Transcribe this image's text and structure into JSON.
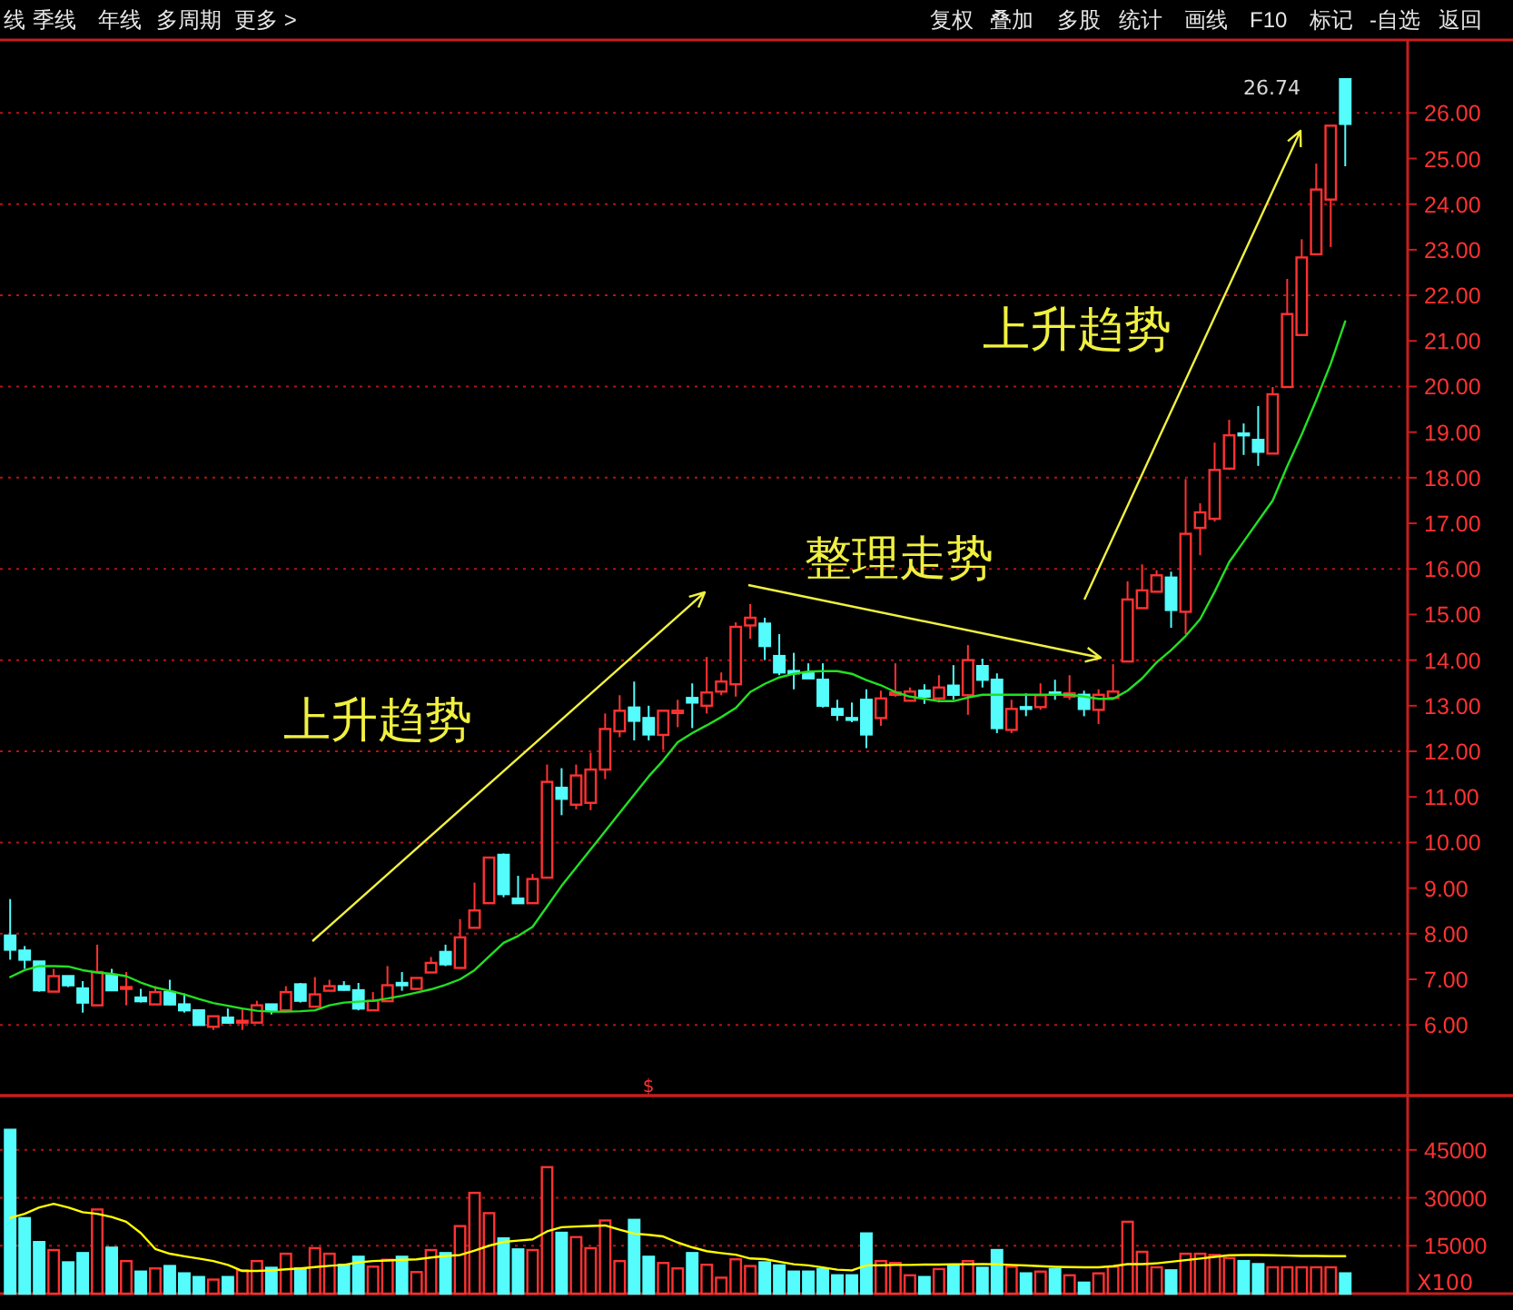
{
  "chart_data": [
    {
      "type": "other",
      "annotations": [
        "线",
        "季线",
        "年线",
        "多周期",
        "更多 >",
        "复权",
        "叠加",
        "多股",
        "统计",
        "画线",
        "F10",
        "标记",
        "-自选",
        "返回"
      ]
    },
    {
      "type": "candlestick",
      "categories": [
        null,
        null,
        null,
        null,
        null,
        null,
        null,
        null,
        null,
        null,
        null,
        null,
        null,
        null,
        null,
        null,
        null,
        null,
        null,
        null,
        null,
        null,
        null,
        null,
        null,
        null,
        null,
        null,
        null,
        null,
        null,
        null,
        null,
        null,
        null,
        null,
        null,
        null,
        null,
        null,
        null,
        null,
        null,
        null,
        null,
        null,
        null,
        null,
        null,
        null,
        null,
        null,
        null,
        null,
        null,
        null,
        null,
        null,
        null,
        null,
        null,
        null,
        null,
        null,
        null,
        null,
        null,
        null,
        null,
        null,
        null,
        null,
        null,
        null,
        null,
        null,
        null,
        null,
        null,
        null,
        null,
        null,
        null,
        null,
        null,
        null,
        null,
        null,
        null,
        null,
        null,
        null,
        null
      ],
      "ylim": [
        4.45,
        27.6
      ],
      "yticks": [
        {
          "value": 6,
          "label": "6.00"
        },
        {
          "value": 7,
          "label": "7.00"
        },
        {
          "value": 8,
          "label": "8.00"
        },
        {
          "value": 9,
          "label": "9.00"
        },
        {
          "value": 10,
          "label": "10.00"
        },
        {
          "value": 11,
          "label": "11.00"
        },
        {
          "value": 12,
          "label": "12.00"
        },
        {
          "value": 13,
          "label": "13.00"
        },
        {
          "value": 14,
          "label": "14.00"
        },
        {
          "value": 15,
          "label": "15.00"
        },
        {
          "value": 16,
          "label": "16.00"
        },
        {
          "value": 17,
          "label": "17.00"
        },
        {
          "value": 18,
          "label": "18.00"
        },
        {
          "value": 19,
          "label": "19.00"
        },
        {
          "value": 20,
          "label": "20.00"
        },
        {
          "value": 21,
          "label": "21.00"
        },
        {
          "value": 22,
          "label": "22.00"
        },
        {
          "value": 23,
          "label": "23.00"
        },
        {
          "value": 24,
          "label": "24.00"
        },
        {
          "value": 25,
          "label": "25.00"
        },
        {
          "value": 26,
          "label": "26.00"
        }
      ],
      "grid": "y",
      "tick_labels": "y",
      "annotations": [
        "上升趋势",
        "整理走势",
        "上升趋势",
        "26.74",
        "$"
      ],
      "series": [
        {
          "type": "candlestick",
          "ohlc": [
            [
              7.96,
              8.76,
              7.43,
              7.65
            ],
            [
              7.63,
              7.73,
              7.23,
              7.43
            ],
            [
              7.39,
              7.39,
              6.73,
              6.76
            ],
            [
              6.73,
              7.23,
              6.73,
              7.07
            ],
            [
              7.07,
              7.07,
              6.83,
              6.87
            ],
            [
              6.8,
              6.96,
              6.27,
              6.49
            ],
            [
              6.43,
              7.76,
              6.43,
              7.16
            ],
            [
              7.09,
              7.23,
              6.76,
              6.76
            ],
            [
              6.8,
              7.16,
              6.43,
              6.83
            ],
            [
              6.6,
              6.79,
              6.49,
              6.52
            ],
            [
              6.45,
              6.85,
              6.45,
              6.72
            ],
            [
              6.72,
              6.99,
              6.43,
              6.45
            ],
            [
              6.45,
              6.69,
              6.27,
              6.32
            ],
            [
              6.32,
              6.32,
              6.0,
              6.0
            ],
            [
              5.96,
              6.19,
              5.89,
              6.19
            ],
            [
              6.16,
              6.36,
              6.03,
              6.05
            ],
            [
              6.05,
              6.36,
              5.89,
              6.09
            ],
            [
              6.05,
              6.53,
              6.05,
              6.43
            ],
            [
              6.45,
              6.45,
              6.23,
              6.32
            ],
            [
              6.32,
              6.85,
              6.32,
              6.72
            ],
            [
              6.89,
              6.92,
              6.49,
              6.53
            ],
            [
              6.4,
              7.05,
              6.4,
              6.67
            ],
            [
              6.75,
              6.99,
              6.75,
              6.85
            ],
            [
              6.85,
              6.96,
              6.75,
              6.77
            ],
            [
              6.76,
              6.92,
              6.32,
              6.36
            ],
            [
              6.32,
              6.72,
              6.32,
              6.53
            ],
            [
              6.52,
              7.29,
              6.52,
              6.87
            ],
            [
              6.92,
              7.16,
              6.75,
              6.87
            ],
            [
              6.79,
              7.03,
              6.79,
              7.03
            ],
            [
              7.15,
              7.49,
              7.15,
              7.36
            ],
            [
              7.6,
              7.76,
              7.29,
              7.33
            ],
            [
              7.25,
              8.32,
              7.25,
              7.92
            ],
            [
              8.13,
              9.12,
              8.13,
              8.51
            ],
            [
              8.67,
              9.67,
              8.67,
              9.67
            ],
            [
              9.73,
              9.76,
              8.8,
              8.87
            ],
            [
              8.77,
              9.27,
              8.67,
              8.67
            ],
            [
              8.67,
              9.31,
              8.67,
              9.2
            ],
            [
              9.23,
              11.71,
              9.23,
              11.33
            ],
            [
              11.2,
              11.63,
              10.6,
              10.96
            ],
            [
              10.83,
              11.71,
              10.73,
              11.47
            ],
            [
              10.87,
              11.97,
              10.71,
              11.6
            ],
            [
              11.6,
              12.83,
              11.39,
              12.49
            ],
            [
              12.44,
              13.23,
              12.31,
              12.89
            ],
            [
              12.96,
              13.53,
              12.24,
              12.67
            ],
            [
              12.73,
              13.0,
              12.24,
              12.37
            ],
            [
              12.36,
              12.89,
              12.03,
              12.89
            ],
            [
              12.84,
              13.13,
              12.53,
              12.89
            ],
            [
              13.17,
              13.49,
              12.51,
              13.07
            ],
            [
              13.0,
              14.07,
              12.83,
              13.29
            ],
            [
              13.31,
              13.73,
              13.23,
              13.53
            ],
            [
              13.47,
              14.83,
              13.2,
              14.73
            ],
            [
              14.76,
              15.23,
              14.47,
              14.93
            ],
            [
              14.8,
              14.93,
              14.0,
              14.31
            ],
            [
              14.09,
              14.57,
              13.67,
              13.73
            ],
            [
              13.76,
              14.16,
              13.36,
              13.71
            ],
            [
              13.71,
              13.93,
              13.6,
              13.6
            ],
            [
              13.57,
              13.93,
              12.96,
              13.0
            ],
            [
              12.93,
              13.13,
              12.67,
              12.8
            ],
            [
              12.73,
              13.07,
              12.64,
              12.69
            ],
            [
              13.13,
              13.36,
              12.07,
              12.37
            ],
            [
              12.73,
              13.33,
              12.56,
              13.16
            ],
            [
              13.24,
              13.93,
              13.2,
              13.29
            ],
            [
              13.11,
              13.4,
              13.11,
              13.31
            ],
            [
              13.33,
              13.47,
              13.04,
              13.2
            ],
            [
              13.16,
              13.67,
              13.07,
              13.4
            ],
            [
              13.44,
              13.89,
              13.13,
              13.24
            ],
            [
              13.23,
              14.33,
              12.8,
              14.0
            ],
            [
              13.87,
              14.03,
              13.4,
              13.57
            ],
            [
              13.57,
              13.71,
              12.4,
              12.51
            ],
            [
              12.47,
              13.13,
              12.4,
              12.93
            ],
            [
              12.97,
              13.27,
              12.77,
              12.93
            ],
            [
              12.97,
              13.49,
              12.91,
              13.23
            ],
            [
              13.29,
              13.57,
              13.13,
              13.24
            ],
            [
              13.2,
              13.67,
              13.13,
              13.27
            ],
            [
              13.24,
              13.33,
              12.77,
              12.93
            ],
            [
              12.91,
              13.36,
              12.6,
              13.24
            ],
            [
              13.17,
              13.91,
              13.17,
              13.31
            ],
            [
              13.97,
              15.73,
              13.97,
              15.33
            ],
            [
              15.14,
              16.1,
              15.14,
              15.53
            ],
            [
              15.5,
              15.97,
              15.5,
              15.86
            ],
            [
              15.81,
              15.94,
              14.71,
              15.1
            ],
            [
              15.06,
              17.97,
              14.57,
              16.77
            ],
            [
              16.9,
              17.44,
              16.3,
              17.24
            ],
            [
              17.1,
              18.77,
              17.04,
              18.17
            ],
            [
              18.2,
              19.27,
              18.17,
              18.93
            ],
            [
              18.97,
              19.19,
              18.5,
              18.93
            ],
            [
              18.83,
              19.57,
              18.26,
              18.57
            ],
            [
              18.53,
              19.99,
              18.53,
              19.83
            ],
            [
              19.99,
              22.36,
              19.99,
              21.59
            ],
            [
              21.13,
              23.23,
              21.13,
              22.83
            ],
            [
              22.9,
              24.89,
              22.9,
              24.32
            ],
            [
              24.1,
              25.72,
              23.06,
              25.72
            ],
            [
              26.74,
              26.74,
              24.83,
              25.76
            ]
          ],
          "colors": [
            "#54fcfc",
            "#54fcfc",
            "#54fcfc",
            "#ff3232",
            "#54fcfc",
            "#54fcfc",
            "#ff3232",
            "#54fcfc",
            "#ff3232",
            "#54fcfc",
            "#ff3232",
            "#54fcfc",
            "#54fcfc",
            "#54fcfc",
            "#ff3232",
            "#54fcfc",
            "#ff3232",
            "#ff3232",
            "#54fcfc",
            "#ff3232",
            "#54fcfc",
            "#ff3232",
            "#ff3232",
            "#54fcfc",
            "#54fcfc",
            "#ff3232",
            "#ff3232",
            "#54fcfc",
            "#ff3232",
            "#ff3232",
            "#54fcfc",
            "#ff3232",
            "#ff3232",
            "#ff3232",
            "#54fcfc",
            "#54fcfc",
            "#ff3232",
            "#ff3232",
            "#54fcfc",
            "#ff3232",
            "#ff3232",
            "#ff3232",
            "#ff3232",
            "#54fcfc",
            "#54fcfc",
            "#ff3232",
            "#ff3232",
            "#54fcfc",
            "#ff3232",
            "#ff3232",
            "#ff3232",
            "#ff3232",
            "#54fcfc",
            "#54fcfc",
            "#54fcfc",
            "#54fcfc",
            "#54fcfc",
            "#54fcfc",
            "#54fcfc",
            "#54fcfc",
            "#ff3232",
            "#ff3232",
            "#ff3232",
            "#54fcfc",
            "#ff3232",
            "#54fcfc",
            "#ff3232",
            "#54fcfc",
            "#54fcfc",
            "#ff3232",
            "#54fcfc",
            "#ff3232",
            "#54fcfc",
            "#ff3232",
            "#54fcfc",
            "#ff3232",
            "#ff3232",
            "#ff3232",
            "#ff3232",
            "#ff3232",
            "#54fcfc",
            "#ff3232",
            "#ff3232",
            "#ff3232",
            "#ff3232",
            "#54fcfc",
            "#54fcfc",
            "#ff3232",
            "#ff3232",
            "#ff3232",
            "#ff3232",
            "#ff3232",
            "#54fcfc"
          ]
        },
        {
          "type": "line",
          "color": "#22e022",
          "values": [
            7.05,
            7.2,
            7.29,
            7.29,
            7.28,
            7.2,
            7.15,
            7.12,
            7.07,
            6.93,
            6.82,
            6.75,
            6.67,
            6.57,
            6.48,
            6.42,
            6.36,
            6.31,
            6.29,
            6.29,
            6.3,
            6.32,
            6.43,
            6.49,
            6.51,
            6.53,
            6.58,
            6.64,
            6.71,
            6.78,
            6.88,
            7.0,
            7.2,
            7.5,
            7.8,
            7.95,
            8.15,
            8.6,
            9.05,
            9.45,
            9.85,
            10.25,
            10.65,
            11.05,
            11.45,
            11.8,
            12.2,
            12.4,
            12.57,
            12.75,
            12.95,
            13.3,
            13.48,
            13.62,
            13.7,
            13.75,
            13.76,
            13.76,
            13.7,
            13.56,
            13.45,
            13.3,
            13.2,
            13.15,
            13.1,
            13.1,
            13.18,
            13.24,
            13.24,
            13.24,
            13.24,
            13.24,
            13.24,
            13.24,
            13.2,
            13.15,
            13.15,
            13.33,
            13.6,
            13.95,
            14.22,
            14.53,
            14.9,
            15.5,
            16.15,
            16.6,
            17.05,
            17.5,
            18.25,
            18.95,
            19.7,
            20.5,
            21.43
          ]
        }
      ]
    },
    {
      "type": "bar",
      "categories": [
        null,
        null,
        null,
        null,
        null,
        null,
        null,
        null,
        null,
        null,
        null,
        null,
        null,
        null,
        null,
        null,
        null,
        null,
        null,
        null,
        null,
        null,
        null,
        null,
        null,
        null,
        null,
        null,
        null,
        null,
        null,
        null,
        null,
        null,
        null,
        null,
        null,
        null,
        null,
        null,
        null,
        null,
        null,
        null,
        null,
        null,
        null,
        null,
        null,
        null,
        null,
        null,
        null,
        null,
        null,
        null,
        null,
        null,
        null,
        null,
        null,
        null,
        null,
        null,
        null,
        null,
        null,
        null,
        null,
        null,
        null,
        null,
        null,
        null,
        null,
        null,
        null,
        null,
        null,
        null,
        null,
        null,
        null,
        null,
        null,
        null,
        null,
        null,
        null,
        null,
        null,
        null,
        null
      ],
      "ylim": [
        0,
        62000
      ],
      "yticks": [
        15000,
        30000,
        45000
      ],
      "grid": "y",
      "tick_labels": "y",
      "annotations": [
        "X100"
      ],
      "series": [
        {
          "type": "bar",
          "values": [
            51300,
            23650,
            16150,
            13650,
            9800,
            12700,
            26350,
            14400,
            10200,
            6900,
            7900,
            8650,
            6350,
            5200,
            4400,
            5200,
            7300,
            10200,
            8100,
            12500,
            7900,
            14250,
            12500,
            9050,
            11550,
            8450,
            10600,
            11550,
            6750,
            13650,
            12700,
            21150,
            31550,
            25200,
            17300,
            13850,
            13650,
            39600,
            19050,
            17700,
            14250,
            22900,
            10200,
            23100,
            11550,
            9600,
            7900,
            12700,
            9050,
            5000,
            10750,
            8650,
            9800,
            8850,
            6900,
            6900,
            7700,
            5750,
            5750,
            18850,
            10200,
            9600,
            5750,
            5200,
            7700,
            8850,
            10200,
            8100,
            13650,
            8450,
            6350,
            6900,
            7700,
            5750,
            3450,
            6350,
            8450,
            22500,
            13100,
            8250,
            7300,
            12500,
            12500,
            12100,
            11150,
            10200,
            9250,
            8250,
            8250,
            8250,
            8250,
            8250,
            6350
          ],
          "colors": [
            "#54fcfc",
            "#54fcfc",
            "#54fcfc",
            "#ff3232",
            "#54fcfc",
            "#54fcfc",
            "#ff3232",
            "#54fcfc",
            "#ff3232",
            "#54fcfc",
            "#ff3232",
            "#54fcfc",
            "#54fcfc",
            "#54fcfc",
            "#ff3232",
            "#54fcfc",
            "#ff3232",
            "#ff3232",
            "#54fcfc",
            "#ff3232",
            "#54fcfc",
            "#ff3232",
            "#ff3232",
            "#54fcfc",
            "#54fcfc",
            "#ff3232",
            "#ff3232",
            "#54fcfc",
            "#ff3232",
            "#ff3232",
            "#54fcfc",
            "#ff3232",
            "#ff3232",
            "#ff3232",
            "#54fcfc",
            "#54fcfc",
            "#ff3232",
            "#ff3232",
            "#54fcfc",
            "#ff3232",
            "#ff3232",
            "#ff3232",
            "#ff3232",
            "#54fcfc",
            "#54fcfc",
            "#ff3232",
            "#ff3232",
            "#54fcfc",
            "#ff3232",
            "#ff3232",
            "#ff3232",
            "#ff3232",
            "#54fcfc",
            "#54fcfc",
            "#54fcfc",
            "#54fcfc",
            "#54fcfc",
            "#54fcfc",
            "#54fcfc",
            "#54fcfc",
            "#ff3232",
            "#ff3232",
            "#ff3232",
            "#54fcfc",
            "#ff3232",
            "#54fcfc",
            "#ff3232",
            "#54fcfc",
            "#54fcfc",
            "#ff3232",
            "#54fcfc",
            "#ff3232",
            "#54fcfc",
            "#ff3232",
            "#54fcfc",
            "#ff3232",
            "#ff3232",
            "#ff3232",
            "#ff3232",
            "#ff3232",
            "#54fcfc",
            "#ff3232",
            "#ff3232",
            "#ff3232",
            "#ff3232",
            "#54fcfc",
            "#54fcfc",
            "#ff3232",
            "#ff3232",
            "#ff3232",
            "#ff3232",
            "#ff3232",
            "#54fcfc"
          ]
        },
        {
          "type": "line",
          "color": "#ffff00",
          "values": [
            23700,
            25000,
            27000,
            28100,
            27000,
            25500,
            25000,
            24000,
            22500,
            19000,
            14000,
            12500,
            11700,
            11000,
            10200,
            9000,
            7100,
            7100,
            7300,
            7600,
            7900,
            8300,
            8700,
            9000,
            9800,
            10200,
            10400,
            10600,
            10750,
            11300,
            11800,
            12100,
            13500,
            15000,
            16200,
            16600,
            17000,
            19500,
            20800,
            21000,
            21200,
            21350,
            20000,
            18800,
            18400,
            17900,
            16000,
            14500,
            13300,
            12700,
            12200,
            11000,
            10800,
            10000,
            9200,
            8850,
            8200,
            7500,
            7300,
            8850,
            8900,
            9000,
            9000,
            9100,
            9100,
            9200,
            9200,
            9250,
            9200,
            9000,
            8800,
            8600,
            8400,
            8300,
            8250,
            8250,
            8600,
            9250,
            9250,
            9500,
            10000,
            10500,
            11000,
            11500,
            12000,
            12100,
            12100,
            12000,
            11900,
            11800,
            11800,
            11750,
            11750
          ]
        }
      ]
    }
  ]
}
